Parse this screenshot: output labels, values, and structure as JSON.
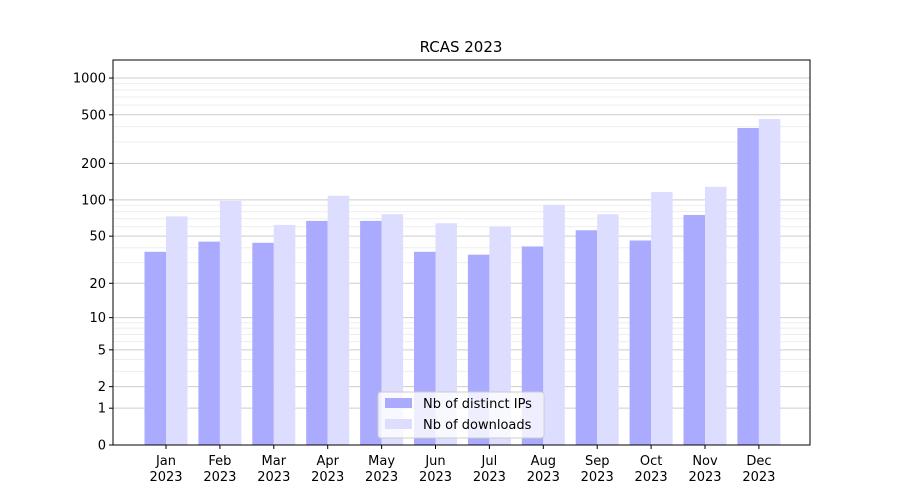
{
  "chart_data": {
    "type": "bar",
    "title": "RCAS 2023",
    "xlabel": "",
    "ylabel": "",
    "yscale": "log10(1+y)",
    "ylim": [
      0,
      1300
    ],
    "yticks": [
      0,
      1,
      2,
      5,
      10,
      20,
      50,
      100,
      200,
      500,
      1000
    ],
    "grid": true,
    "legend_position": "lower center",
    "categories": [
      "Jan\n2023",
      "Feb\n2023",
      "Mar\n2023",
      "Apr\n2023",
      "May\n2023",
      "Jun\n2023",
      "Jul\n2023",
      "Aug\n2023",
      "Sep\n2023",
      "Oct\n2023",
      "Nov\n2023",
      "Dec\n2023"
    ],
    "series": [
      {
        "name": "Nb of distinct IPs",
        "color": "#aaaaff",
        "values": [
          37,
          45,
          44,
          67,
          67,
          37,
          35,
          41,
          56,
          46,
          75,
          390
        ]
      },
      {
        "name": "Nb of downloads",
        "color": "#ddddff",
        "values": [
          73,
          98,
          62,
          108,
          76,
          64,
          60,
          91,
          76,
          116,
          128,
          462
        ]
      }
    ]
  }
}
